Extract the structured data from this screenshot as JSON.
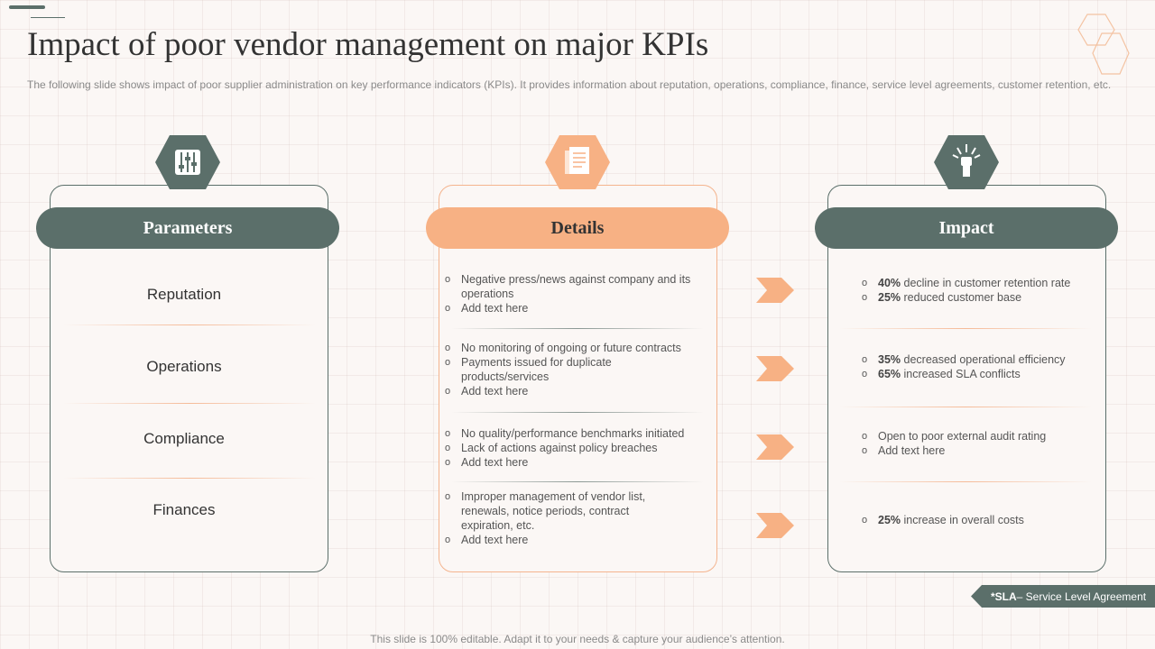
{
  "title": "Impact of poor vendor management on major KPIs",
  "subtitle": "The following slide shows impact of poor supplier administration on key performance indicators (KPIs). It provides information about reputation, operations, compliance, finance, service level agreements, customer retention, etc.",
  "columns": {
    "parameters": {
      "header": "Parameters",
      "icon": "sliders-icon"
    },
    "details": {
      "header": "Details",
      "icon": "documents-icon"
    },
    "impact": {
      "header": "Impact",
      "icon": "raised-fist-icon"
    }
  },
  "rows": [
    {
      "parameter": "Reputation",
      "details": [
        "Negative press/news against company and its operations",
        "Add text here"
      ],
      "impact": [
        {
          "bold": "40%",
          "text": " decline in customer retention rate"
        },
        {
          "bold": "25%",
          "text": " reduced customer base"
        }
      ]
    },
    {
      "parameter": "Operations",
      "details": [
        "No monitoring of ongoing or future contracts",
        "Payments issued for duplicate products/services",
        "Add text here"
      ],
      "impact": [
        {
          "bold": "35%",
          "text": " decreased operational efficiency"
        },
        {
          "bold": "65%",
          "text": " increased SLA conflicts"
        }
      ]
    },
    {
      "parameter": "Compliance",
      "details": [
        "No quality/performance benchmarks initiated",
        "Lack of actions against policy breaches",
        "Add text here"
      ],
      "impact": [
        {
          "bold": "",
          "text": "Open to poor external audit rating"
        },
        {
          "bold": "",
          "text": "Add text here"
        }
      ]
    },
    {
      "parameter": "Finances",
      "details": [
        "Improper management of vendor list, renewals, notice periods, contract expiration, etc.",
        "Add text here"
      ],
      "impact": [
        {
          "bold": "25%",
          "text": " increase in overall costs"
        }
      ]
    }
  ],
  "sla_note": {
    "bold": "*SLA",
    "text": "– Service Level Agreement"
  },
  "footer": "This slide is 100% editable. Adapt it to your needs & capture your audience’s attention.",
  "colors": {
    "teal": "#5b6f6a",
    "peach": "#f7b184",
    "background": "#fbf7f5"
  }
}
